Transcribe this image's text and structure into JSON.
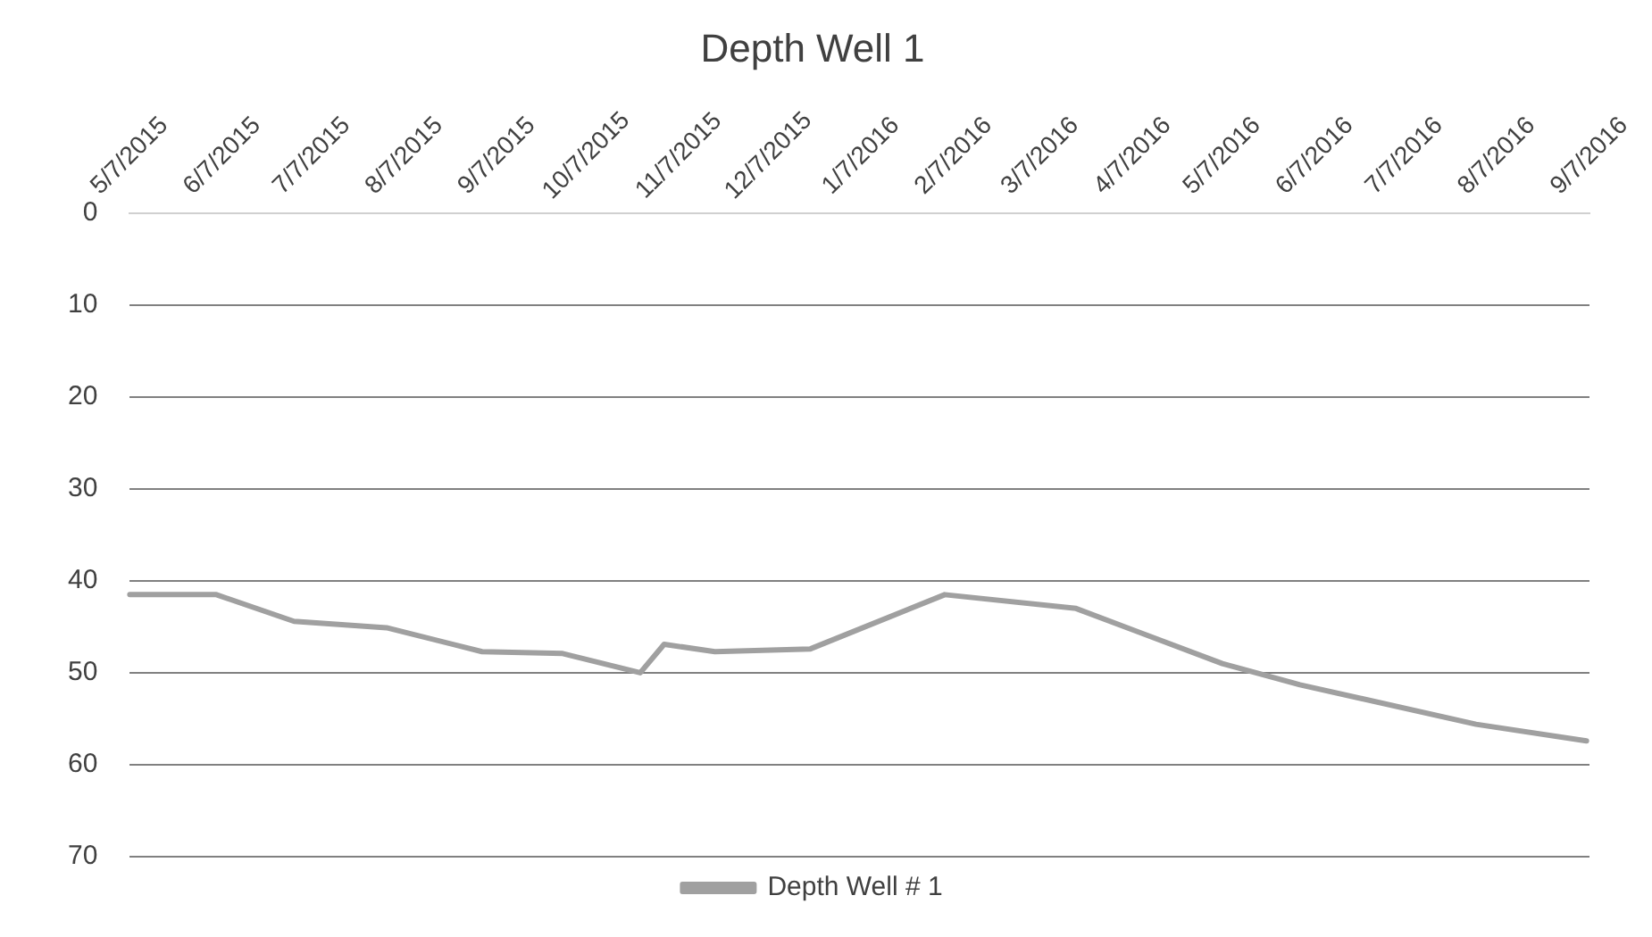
{
  "chart_data": {
    "type": "line",
    "title": "Depth Well 1",
    "x": [
      "2015-05-07",
      "2015-06-05",
      "2015-07-01",
      "2015-08-01",
      "2015-09-02",
      "2015-09-29",
      "2015-10-25",
      "2015-11-02",
      "2015-11-19",
      "2015-12-21",
      "2016-02-04",
      "2016-03-19",
      "2016-05-07",
      "2016-06-02",
      "2016-07-31",
      "2016-09-06"
    ],
    "series": [
      {
        "name": "Depth Well # 1",
        "color": "#a0a0a0",
        "values": [
          41.5,
          41.5,
          44.4,
          45.1,
          47.7,
          47.9,
          50,
          46.9,
          47.7,
          47.4,
          41.5,
          43,
          49,
          51.3,
          55.6,
          57.4
        ]
      }
    ],
    "xlim": [
      "2015-05-07",
      "2016-09-07"
    ],
    "xticks": [
      {
        "value": "2015-05-07",
        "label": "5/7/2015"
      },
      {
        "value": "2015-06-07",
        "label": "6/7/2015"
      },
      {
        "value": "2015-07-07",
        "label": "7/7/2015"
      },
      {
        "value": "2015-08-07",
        "label": "8/7/2015"
      },
      {
        "value": "2015-09-07",
        "label": "9/7/2015"
      },
      {
        "value": "2015-10-07",
        "label": "10/7/2015"
      },
      {
        "value": "2015-11-07",
        "label": "11/7/2015"
      },
      {
        "value": "2015-12-07",
        "label": "12/7/2015"
      },
      {
        "value": "2016-01-07",
        "label": "1/7/2016"
      },
      {
        "value": "2016-02-07",
        "label": "2/7/2016"
      },
      {
        "value": "2016-03-07",
        "label": "3/7/2016"
      },
      {
        "value": "2016-04-07",
        "label": "4/7/2016"
      },
      {
        "value": "2016-05-07",
        "label": "5/7/2016"
      },
      {
        "value": "2016-06-07",
        "label": "6/7/2016"
      },
      {
        "value": "2016-07-07",
        "label": "7/7/2016"
      },
      {
        "value": "2016-08-07",
        "label": "8/7/2016"
      },
      {
        "value": "2016-09-07",
        "label": "9/7/2016"
      }
    ],
    "ylim": [
      70,
      0
    ],
    "yticks": [
      0,
      10,
      20,
      30,
      40,
      50,
      60,
      70
    ],
    "grid": "y",
    "legend": "bottom",
    "marker": "none",
    "line_style": "solid"
  }
}
